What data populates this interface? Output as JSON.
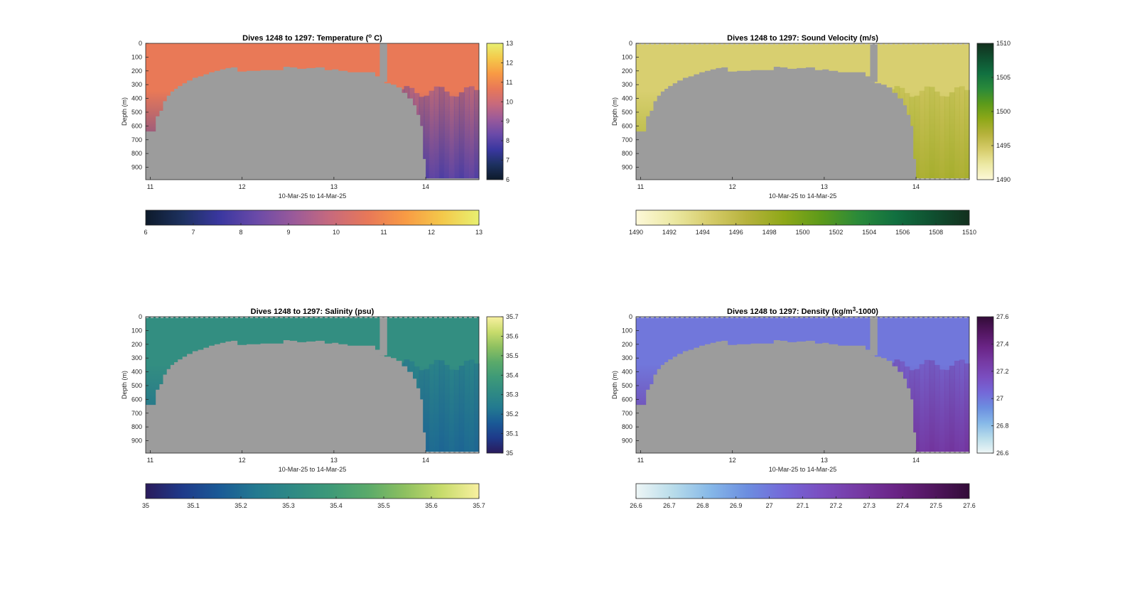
{
  "colors": {
    "land_gray": "#9c9c9c",
    "dashed_line": "#c8c8c8"
  },
  "chart_data": [
    {
      "id": "temperature",
      "type": "heatmap",
      "title": "Dives 1248 to 1297: Temperature (",
      "title_sup": "o",
      "title_end": " C)",
      "xlabel": "10-Mar-25 to 14-Mar-25",
      "ylabel": "Depth (m)",
      "x_ticks": [
        "11",
        "12",
        "13",
        "14"
      ],
      "x_tick_values": [
        11,
        12,
        13,
        14
      ],
      "xlim": [
        10.95,
        14.58
      ],
      "y_ticks": [
        "0",
        "100",
        "200",
        "300",
        "400",
        "500",
        "600",
        "700",
        "800",
        "900"
      ],
      "y_tick_values": [
        0,
        100,
        200,
        300,
        400,
        500,
        600,
        700,
        800,
        900
      ],
      "ylim": [
        0,
        990
      ],
      "seabed_depth_profile": {
        "x": [
          10.95,
          11.03,
          11.06,
          11.1,
          11.14,
          11.18,
          11.22,
          11.26,
          11.3,
          11.35,
          11.4,
          11.46,
          11.52,
          11.58,
          11.64,
          11.7,
          11.76,
          11.82,
          11.88,
          11.95,
          12.05,
          12.2,
          12.35,
          12.45,
          12.52,
          12.6,
          12.7,
          12.8,
          12.9,
          12.98,
          13.05,
          13.15,
          13.25,
          13.35,
          13.45,
          13.5,
          13.55,
          13.62,
          13.68,
          13.74,
          13.8,
          13.86,
          13.9,
          13.94,
          13.97,
          14.0,
          14.58
        ],
        "depth": [
          640,
          640,
          530,
          490,
          420,
          380,
          350,
          330,
          310,
          290,
          270,
          250,
          240,
          225,
          210,
          200,
          190,
          180,
          175,
          205,
          200,
          195,
          195,
          170,
          175,
          185,
          180,
          175,
          195,
          190,
          200,
          210,
          210,
          210,
          240,
          280,
          290,
          300,
          320,
          360,
          400,
          450,
          520,
          600,
          840,
          980,
          990
        ]
      },
      "colorbar_vertical": {
        "min": 6,
        "max": 13,
        "ticks": [
          "6",
          "7",
          "8",
          "9",
          "10",
          "11",
          "12",
          "13"
        ]
      },
      "colorbar_horizontal": {
        "min": 6,
        "max": 13,
        "ticks": [
          "6",
          "7",
          "8",
          "9",
          "10",
          "11",
          "12",
          "13"
        ]
      },
      "colormap": [
        "#0d1a2a",
        "#1d3160",
        "#3a37a0",
        "#6a4aa8",
        "#9a5a9a",
        "#c86a7c",
        "#e87858",
        "#f89a44",
        "#f4c84a",
        "#e8f070"
      ],
      "water_surface_value": 10.7,
      "water_deep_value": 7.8
    },
    {
      "id": "sound_velocity",
      "type": "heatmap",
      "title": "Dives 1248 to 1297: Sound Velocity (m/s)",
      "xlabel": "10-Mar-25 to 14-Mar-25",
      "ylabel": "Depth (m)",
      "x_ticks": [
        "11",
        "12",
        "13",
        "14"
      ],
      "x_tick_values": [
        11,
        12,
        13,
        14
      ],
      "xlim": [
        10.95,
        14.58
      ],
      "y_ticks": [
        "0",
        "100",
        "200",
        "300",
        "400",
        "500",
        "600",
        "700",
        "800",
        "900"
      ],
      "y_tick_values": [
        0,
        100,
        200,
        300,
        400,
        500,
        600,
        700,
        800,
        900
      ],
      "ylim": [
        0,
        990
      ],
      "colorbar_vertical": {
        "min": 1490,
        "max": 1510,
        "ticks": [
          "1490",
          "1495",
          "1500",
          "1505",
          "1510"
        ]
      },
      "colorbar_horizontal": {
        "min": 1490,
        "max": 1510,
        "ticks": [
          "1490",
          "1492",
          "1494",
          "1496",
          "1498",
          "1500",
          "1502",
          "1504",
          "1506",
          "1508",
          "1510"
        ]
      },
      "colormap": [
        "#fdf8d8",
        "#ece9a4",
        "#d6cc6a",
        "#b6b23c",
        "#8ea818",
        "#5c9a1a",
        "#2a8a3a",
        "#117040",
        "#0f5030",
        "#13301e"
      ],
      "water_surface_value": 1494.2,
      "water_deep_value": 1497.6
    },
    {
      "id": "salinity",
      "type": "heatmap",
      "title": "Dives 1248 to 1297: Salinity (psu)",
      "xlabel": "10-Mar-25 to 14-Mar-25",
      "ylabel": "Depth (m)",
      "x_ticks": [
        "11",
        "12",
        "13",
        "14"
      ],
      "x_tick_values": [
        11,
        12,
        13,
        14
      ],
      "xlim": [
        10.95,
        14.58
      ],
      "y_ticks": [
        "0",
        "100",
        "200",
        "300",
        "400",
        "500",
        "600",
        "700",
        "800",
        "900"
      ],
      "y_tick_values": [
        0,
        100,
        200,
        300,
        400,
        500,
        600,
        700,
        800,
        900
      ],
      "ylim": [
        0,
        990
      ],
      "colorbar_vertical": {
        "min": 35,
        "max": 35.7,
        "ticks": [
          "35",
          "35.1",
          "35.2",
          "35.3",
          "35.4",
          "35.5",
          "35.6",
          "35.7"
        ]
      },
      "colorbar_horizontal": {
        "min": 35,
        "max": 35.7,
        "ticks": [
          "35",
          "35.1",
          "35.2",
          "35.3",
          "35.4",
          "35.5",
          "35.6",
          "35.7"
        ]
      },
      "colormap": [
        "#2a1b5c",
        "#1e3a8a",
        "#1a5a96",
        "#237a90",
        "#2f8a84",
        "#3e9a78",
        "#5aaa6a",
        "#8ec060",
        "#c8dc6c",
        "#f8f0a0"
      ],
      "water_surface_value": 35.33,
      "water_deep_value": 35.18
    },
    {
      "id": "density",
      "type": "heatmap",
      "title": "Dives 1248 to 1297: Density (kg/m",
      "title_sup": "3",
      "title_end": "-1000)",
      "xlabel": "10-Mar-25 to 14-Mar-25",
      "ylabel": "Depth (m)",
      "x_ticks": [
        "11",
        "12",
        "13",
        "14"
      ],
      "x_tick_values": [
        11,
        12,
        13,
        14
      ],
      "xlim": [
        10.95,
        14.58
      ],
      "y_ticks": [
        "0",
        "100",
        "200",
        "300",
        "400",
        "500",
        "600",
        "700",
        "800",
        "900"
      ],
      "y_tick_values": [
        0,
        100,
        200,
        300,
        400,
        500,
        600,
        700,
        800,
        900
      ],
      "ylim": [
        0,
        990
      ],
      "colorbar_vertical": {
        "min": 26.6,
        "max": 27.6,
        "ticks": [
          "26.6",
          "26.8",
          "27",
          "27.2",
          "27.4",
          "27.6"
        ]
      },
      "colorbar_horizontal": {
        "min": 26.6,
        "max": 27.6,
        "ticks": [
          "26.6",
          "26.7",
          "26.8",
          "26.9",
          "27",
          "27.1",
          "27.2",
          "27.3",
          "27.4",
          "27.5",
          "27.6"
        ]
      },
      "colormap": [
        "#eef6f6",
        "#b8dcea",
        "#86b8e8",
        "#6c8ee0",
        "#7468d8",
        "#7a4ec0",
        "#763aa4",
        "#6a2486",
        "#521660",
        "#320c38"
      ],
      "water_surface_value": 27.0,
      "water_deep_value": 27.3
    }
  ]
}
